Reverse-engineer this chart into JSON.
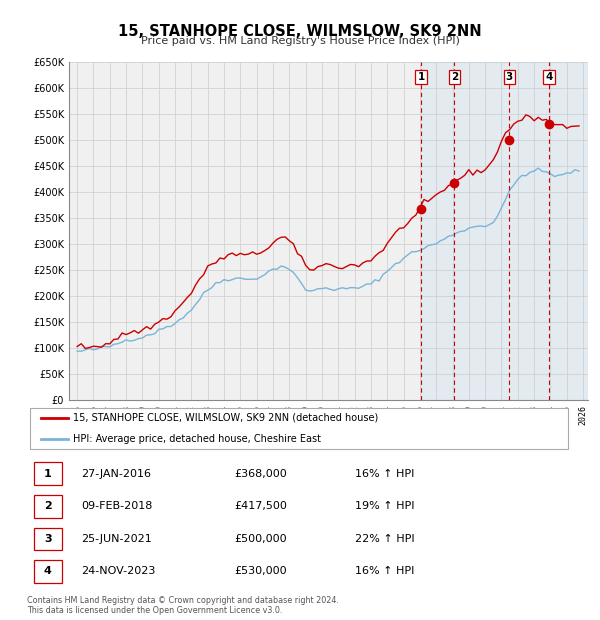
{
  "title": "15, STANHOPE CLOSE, WILMSLOW, SK9 2NN",
  "subtitle": "Price paid vs. HM Land Registry's House Price Index (HPI)",
  "x_start_year": 1995,
  "x_end_year": 2026,
  "y_min": 0,
  "y_max": 650000,
  "y_ticks": [
    0,
    50000,
    100000,
    150000,
    200000,
    250000,
    300000,
    350000,
    400000,
    450000,
    500000,
    550000,
    600000,
    650000
  ],
  "y_tick_labels": [
    "£0",
    "£50K",
    "£100K",
    "£150K",
    "£200K",
    "£250K",
    "£300K",
    "£350K",
    "£400K",
    "£450K",
    "£500K",
    "£550K",
    "£600K",
    "£650K"
  ],
  "sales": [
    {
      "date": "2016-01-27",
      "price": 368000,
      "label": "1",
      "hpi_pct": "16%"
    },
    {
      "date": "2018-02-09",
      "price": 417500,
      "label": "2",
      "hpi_pct": "19%"
    },
    {
      "date": "2021-06-25",
      "price": 500000,
      "label": "3",
      "hpi_pct": "22%"
    },
    {
      "date": "2023-11-24",
      "price": 530000,
      "label": "4",
      "hpi_pct": "16%"
    }
  ],
  "sale_vline_color": "#cc0000",
  "sale_dot_color": "#cc0000",
  "hpi_line_color": "#7ab4d8",
  "hpi_fill_color": "#cce4f5",
  "price_line_color": "#cc0000",
  "grid_color": "#cccccc",
  "chart_bg_color": "#f0f0f0",
  "legend_label_price": "15, STANHOPE CLOSE, WILMSLOW, SK9 2NN (detached house)",
  "legend_label_hpi": "HPI: Average price, detached house, Cheshire East",
  "footer": "Contains HM Land Registry data © Crown copyright and database right 2024.\nThis data is licensed under the Open Government Licence v3.0.",
  "table_rows": [
    {
      "num": "1",
      "date": "27-JAN-2016",
      "price": "£368,000",
      "info": "16% ↑ HPI"
    },
    {
      "num": "2",
      "date": "09-FEB-2018",
      "price": "£417,500",
      "info": "19% ↑ HPI"
    },
    {
      "num": "3",
      "date": "25-JUN-2021",
      "price": "£500,000",
      "info": "22% ↑ HPI"
    },
    {
      "num": "4",
      "date": "24-NOV-2023",
      "price": "£530,000",
      "info": "16% ↑ HPI"
    }
  ],
  "hpi_data_x": [
    1995.0,
    1995.25,
    1995.5,
    1995.75,
    1996.0,
    1996.25,
    1996.5,
    1996.75,
    1997.0,
    1997.25,
    1997.5,
    1997.75,
    1998.0,
    1998.25,
    1998.5,
    1998.75,
    1999.0,
    1999.25,
    1999.5,
    1999.75,
    2000.0,
    2000.25,
    2000.5,
    2000.75,
    2001.0,
    2001.25,
    2001.5,
    2001.75,
    2002.0,
    2002.25,
    2002.5,
    2002.75,
    2003.0,
    2003.25,
    2003.5,
    2003.75,
    2004.0,
    2004.25,
    2004.5,
    2004.75,
    2005.0,
    2005.25,
    2005.5,
    2005.75,
    2006.0,
    2006.25,
    2006.5,
    2006.75,
    2007.0,
    2007.25,
    2007.5,
    2007.75,
    2008.0,
    2008.25,
    2008.5,
    2008.75,
    2009.0,
    2009.25,
    2009.5,
    2009.75,
    2010.0,
    2010.25,
    2010.5,
    2010.75,
    2011.0,
    2011.25,
    2011.5,
    2011.75,
    2012.0,
    2012.25,
    2012.5,
    2012.75,
    2013.0,
    2013.25,
    2013.5,
    2013.75,
    2014.0,
    2014.25,
    2014.5,
    2014.75,
    2015.0,
    2015.25,
    2015.5,
    2015.75,
    2016.0,
    2016.25,
    2016.5,
    2016.75,
    2017.0,
    2017.25,
    2017.5,
    2017.75,
    2018.0,
    2018.25,
    2018.5,
    2018.75,
    2019.0,
    2019.25,
    2019.5,
    2019.75,
    2020.0,
    2020.25,
    2020.5,
    2020.75,
    2021.0,
    2021.25,
    2021.5,
    2021.75,
    2022.0,
    2022.25,
    2022.5,
    2022.75,
    2023.0,
    2023.25,
    2023.5,
    2023.75,
    2024.0,
    2024.25,
    2024.5,
    2024.75,
    2025.0,
    2025.25,
    2025.5,
    2025.75
  ],
  "hpi_data_y": [
    93000,
    94000,
    95000,
    96000,
    97000,
    98500,
    100000,
    101000,
    103000,
    106000,
    109000,
    112000,
    115000,
    117000,
    118000,
    119000,
    121000,
    124000,
    127000,
    130000,
    133000,
    137000,
    141000,
    144000,
    148000,
    154000,
    160000,
    166000,
    174000,
    184000,
    194000,
    203000,
    211000,
    218000,
    224000,
    228000,
    231000,
    233000,
    234000,
    234000,
    233000,
    232000,
    232000,
    233000,
    235000,
    238000,
    242000,
    246000,
    251000,
    255000,
    257000,
    256000,
    252000,
    244000,
    233000,
    222000,
    213000,
    210000,
    210000,
    212000,
    215000,
    216000,
    215000,
    213000,
    212000,
    213000,
    214000,
    214000,
    215000,
    216000,
    218000,
    220000,
    223000,
    228000,
    234000,
    240000,
    247000,
    255000,
    262000,
    268000,
    273000,
    278000,
    282000,
    286000,
    289000,
    292000,
    295000,
    298000,
    301000,
    305000,
    309000,
    313000,
    318000,
    322000,
    325000,
    328000,
    330000,
    332000,
    334000,
    335000,
    336000,
    338000,
    342000,
    355000,
    370000,
    385000,
    400000,
    413000,
    424000,
    432000,
    435000,
    438000,
    440000,
    441000,
    440000,
    438000,
    435000,
    432000,
    430000,
    432000,
    435000,
    438000,
    440000,
    443000
  ],
  "prop_data_x": [
    1995.0,
    1995.25,
    1995.5,
    1995.75,
    1996.0,
    1996.25,
    1996.5,
    1996.75,
    1997.0,
    1997.25,
    1997.5,
    1997.75,
    1998.0,
    1998.25,
    1998.5,
    1998.75,
    1999.0,
    1999.25,
    1999.5,
    1999.75,
    2000.0,
    2000.25,
    2000.5,
    2000.75,
    2001.0,
    2001.25,
    2001.5,
    2001.75,
    2002.0,
    2002.25,
    2002.5,
    2002.75,
    2003.0,
    2003.25,
    2003.5,
    2003.75,
    2004.0,
    2004.25,
    2004.5,
    2004.75,
    2005.0,
    2005.25,
    2005.5,
    2005.75,
    2006.0,
    2006.25,
    2006.5,
    2006.75,
    2007.0,
    2007.25,
    2007.5,
    2007.75,
    2008.0,
    2008.25,
    2008.5,
    2008.75,
    2009.0,
    2009.25,
    2009.5,
    2009.75,
    2010.0,
    2010.25,
    2010.5,
    2010.75,
    2011.0,
    2011.25,
    2011.5,
    2011.75,
    2012.0,
    2012.25,
    2012.5,
    2012.75,
    2013.0,
    2013.25,
    2013.5,
    2013.75,
    2014.0,
    2014.25,
    2014.5,
    2014.75,
    2015.0,
    2015.25,
    2015.5,
    2015.75,
    2016.0,
    2016.25,
    2016.5,
    2016.75,
    2017.0,
    2017.25,
    2017.5,
    2017.75,
    2018.0,
    2018.25,
    2018.5,
    2018.75,
    2019.0,
    2019.25,
    2019.5,
    2019.75,
    2020.0,
    2020.25,
    2020.5,
    2020.75,
    2021.0,
    2021.25,
    2021.5,
    2021.75,
    2022.0,
    2022.25,
    2022.5,
    2022.75,
    2023.0,
    2023.25,
    2023.5,
    2023.75,
    2024.0,
    2024.25,
    2024.5,
    2024.75,
    2025.0,
    2025.25,
    2025.5,
    2025.75
  ],
  "prop_data_y": [
    101000,
    101500,
    102000,
    102500,
    103000,
    104000,
    106000,
    108000,
    111000,
    115000,
    120000,
    124000,
    128000,
    130000,
    131000,
    132000,
    134000,
    137000,
    141000,
    145000,
    149000,
    154000,
    159000,
    164000,
    170000,
    178000,
    187000,
    196000,
    207000,
    220000,
    232000,
    243000,
    252000,
    260000,
    267000,
    271000,
    274000,
    277000,
    279000,
    280000,
    279000,
    278000,
    278000,
    279000,
    281000,
    285000,
    290000,
    295000,
    302000,
    308000,
    312000,
    311000,
    306000,
    296000,
    282000,
    268000,
    257000,
    253000,
    253000,
    255000,
    259000,
    260000,
    259000,
    257000,
    256000,
    257000,
    258000,
    258000,
    259000,
    260000,
    263000,
    266000,
    270000,
    276000,
    283000,
    291000,
    300000,
    310000,
    319000,
    327000,
    335000,
    342000,
    348000,
    354000,
    368000,
    374000,
    380000,
    385000,
    392000,
    398000,
    404000,
    410000,
    417500,
    423000,
    428000,
    432000,
    436000,
    438000,
    440000,
    442000,
    444000,
    449000,
    462000,
    480000,
    500000,
    512000,
    522000,
    530000,
    536000,
    540000,
    542000,
    543000,
    543000,
    543000,
    540000,
    537000,
    533000,
    530000,
    528000,
    527000,
    526000,
    527000,
    528000,
    529000
  ]
}
